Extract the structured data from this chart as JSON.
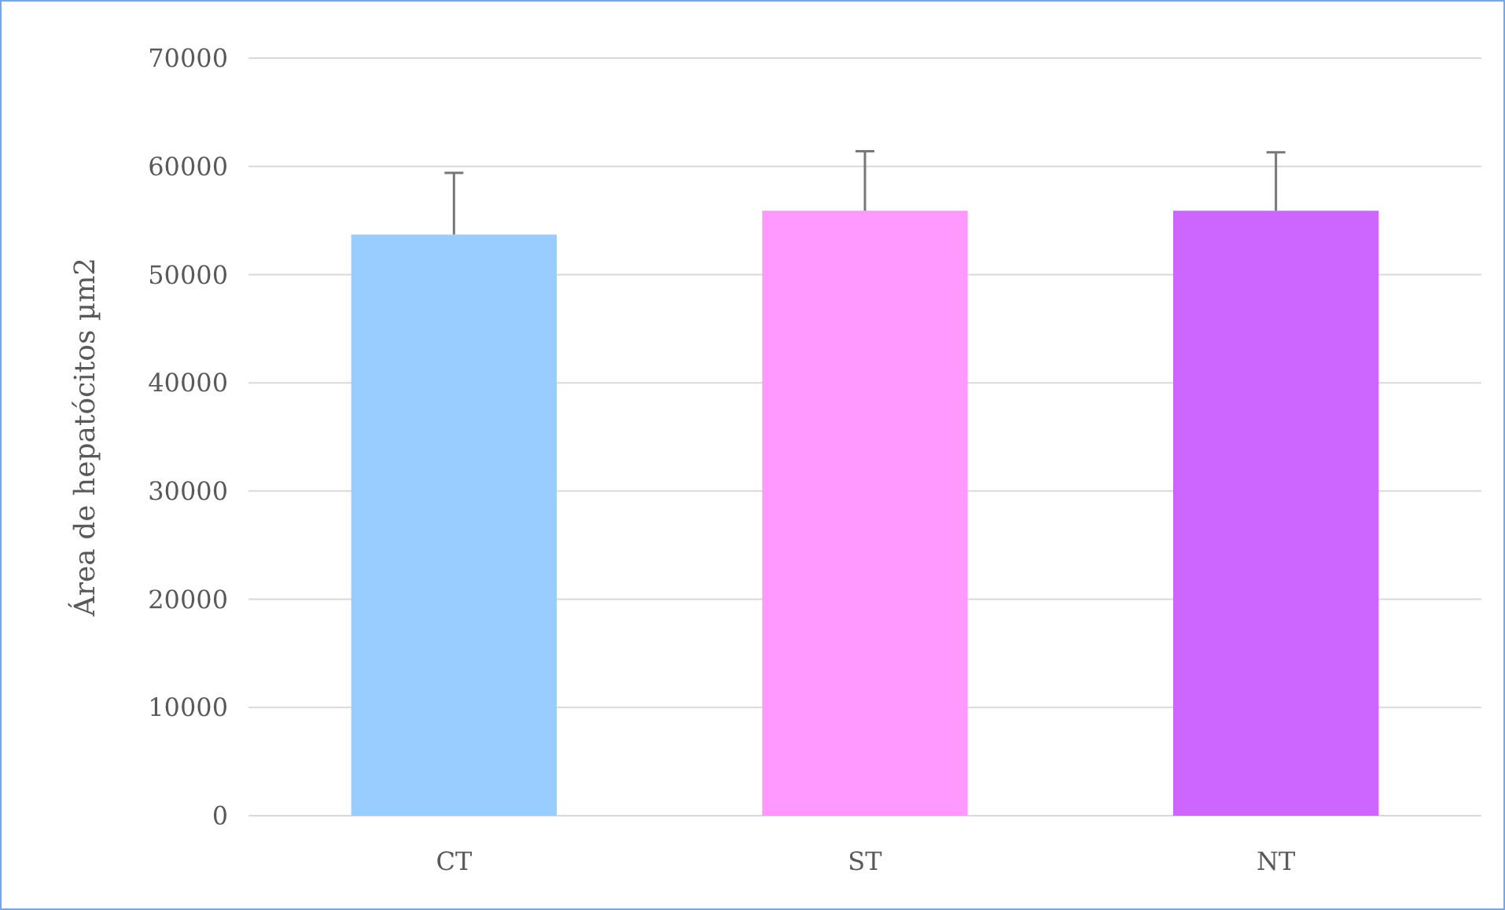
{
  "chart_data": {
    "type": "bar",
    "ylabel": "Área de hepatócitos µm2",
    "categories": [
      "CT",
      "ST",
      "NT"
    ],
    "values": [
      53700,
      55900,
      55900
    ],
    "colors": [
      "#99ccff",
      "#ff99ff",
      "#cc66ff"
    ],
    "errors": [
      [
        53700,
        59400
      ],
      [
        55900,
        61400
      ],
      [
        55900,
        61300
      ]
    ],
    "ylim": [
      0,
      70000
    ],
    "yticks": [
      0,
      10000,
      20000,
      30000,
      40000,
      50000,
      60000,
      70000
    ],
    "grid": "y"
  }
}
